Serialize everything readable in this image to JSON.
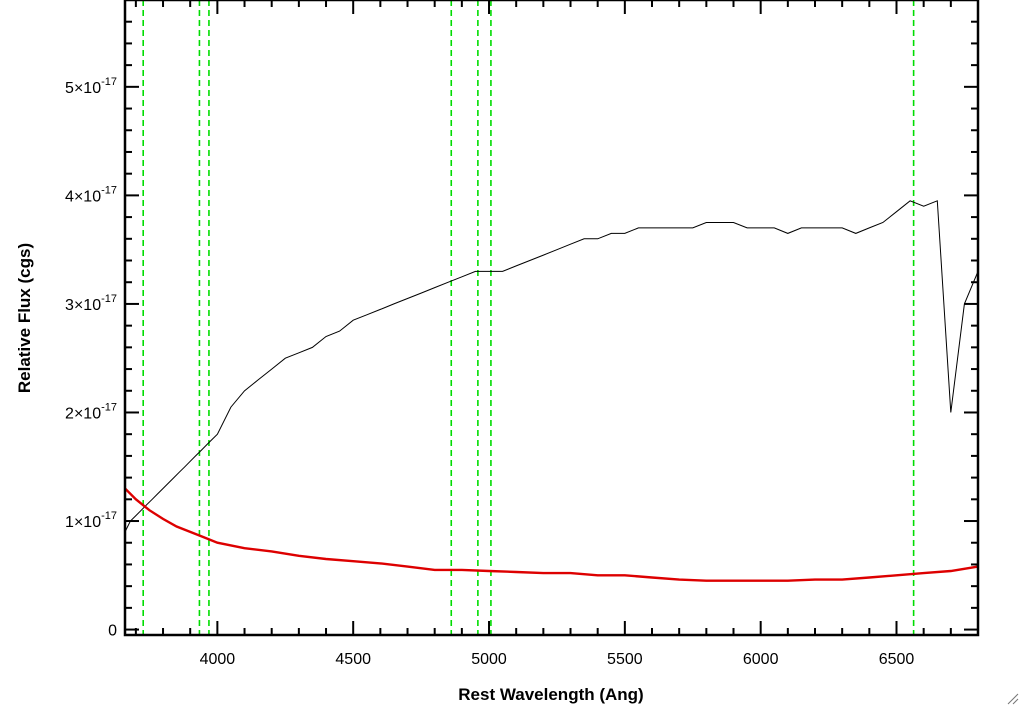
{
  "chart_data": {
    "type": "line",
    "xlabel": "Rest Wavelength (Ang)",
    "ylabel": "Relative Flux (cgs)",
    "xlim": [
      3660,
      6800
    ],
    "ylim": [
      -0.05,
      5.8
    ],
    "y_unit_exponent": "-17",
    "x_ticks": [
      4000,
      4500,
      5000,
      5500,
      6000,
      6500
    ],
    "x_tick_labels": [
      "4000",
      "4500",
      "5000",
      "5500",
      "6000",
      "6500"
    ],
    "y_ticks": [
      0,
      1,
      2,
      3,
      4,
      5
    ],
    "y_tick_labels": [
      {
        "mantissa": "0",
        "exponent": ""
      },
      {
        "mantissa": "1×10",
        "exponent": "-17"
      },
      {
        "mantissa": "2×10",
        "exponent": "-17"
      },
      {
        "mantissa": "3×10",
        "exponent": "-17"
      },
      {
        "mantissa": "4×10",
        "exponent": "-17"
      },
      {
        "mantissa": "5×10",
        "exponent": "-17"
      }
    ],
    "grid": false,
    "reference_lines": {
      "color": "#00dd00",
      "style": "dashed",
      "x": [
        3727,
        3934,
        3969,
        4861,
        4959,
        5007,
        6563
      ]
    },
    "series": [
      {
        "color": "#000000",
        "role": "spectrum",
        "x": [
          3660,
          3680,
          3700,
          3720,
          3740,
          3760,
          3780,
          3800,
          3820,
          3840,
          3860,
          3880,
          3900,
          3920,
          3940,
          3960,
          3980,
          4000,
          4050,
          4100,
          4150,
          4200,
          4250,
          4300,
          4350,
          4400,
          4450,
          4500,
          4550,
          4600,
          4650,
          4700,
          4750,
          4800,
          4850,
          4900,
          4950,
          5000,
          5050,
          5100,
          5150,
          5200,
          5250,
          5300,
          5350,
          5400,
          5450,
          5500,
          5550,
          5600,
          5650,
          5700,
          5750,
          5800,
          5850,
          5900,
          5950,
          6000,
          6050,
          6100,
          6150,
          6200,
          6250,
          6300,
          6350,
          6400,
          6450,
          6500,
          6550,
          6600,
          6650,
          6700,
          6750,
          6800
        ],
        "y": [
          0.9,
          1.0,
          1.05,
          1.1,
          1.15,
          1.2,
          1.25,
          1.3,
          1.35,
          1.4,
          1.45,
          1.5,
          1.55,
          1.6,
          1.65,
          1.7,
          1.75,
          1.8,
          2.05,
          2.2,
          2.3,
          2.4,
          2.5,
          2.55,
          2.6,
          2.7,
          2.75,
          2.85,
          2.9,
          2.95,
          3.0,
          3.05,
          3.1,
          3.15,
          3.2,
          3.25,
          3.3,
          3.3,
          3.3,
          3.35,
          3.4,
          3.45,
          3.5,
          3.55,
          3.6,
          3.6,
          3.65,
          3.65,
          3.7,
          3.7,
          3.7,
          3.7,
          3.7,
          3.75,
          3.75,
          3.75,
          3.7,
          3.7,
          3.7,
          3.65,
          3.7,
          3.7,
          3.7,
          3.7,
          3.65,
          3.7,
          3.75,
          3.85,
          3.95,
          3.9,
          3.95,
          2.0,
          3.0,
          3.3
        ]
      },
      {
        "color": "#dd0000",
        "role": "error",
        "x": [
          3660,
          3700,
          3750,
          3800,
          3850,
          3900,
          3950,
          4000,
          4100,
          4200,
          4300,
          4400,
          4500,
          4600,
          4700,
          4800,
          4900,
          5000,
          5100,
          5200,
          5300,
          5400,
          5500,
          5600,
          5700,
          5800,
          5900,
          6000,
          6100,
          6200,
          6300,
          6400,
          6500,
          6600,
          6700,
          6800
        ],
        "y": [
          1.3,
          1.2,
          1.1,
          1.02,
          0.95,
          0.9,
          0.85,
          0.8,
          0.75,
          0.72,
          0.68,
          0.65,
          0.63,
          0.61,
          0.58,
          0.55,
          0.55,
          0.54,
          0.53,
          0.52,
          0.52,
          0.5,
          0.5,
          0.48,
          0.46,
          0.45,
          0.45,
          0.45,
          0.45,
          0.46,
          0.46,
          0.48,
          0.5,
          0.52,
          0.54,
          0.58
        ]
      }
    ]
  }
}
